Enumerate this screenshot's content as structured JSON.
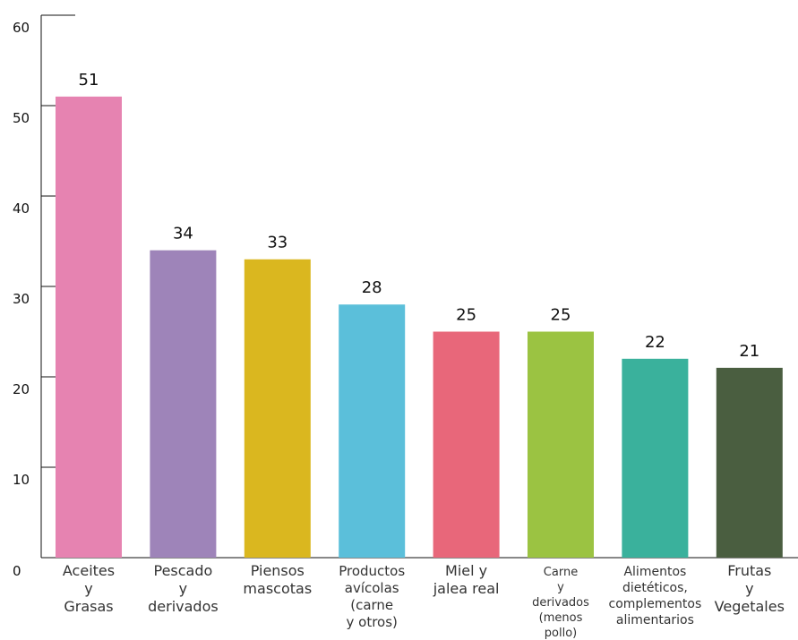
{
  "chart_data": {
    "type": "bar",
    "categories": [
      [
        "Aceites",
        "y",
        "Grasas"
      ],
      [
        "Pescado",
        "y",
        "derivados"
      ],
      [
        "Piensos",
        "mascotas"
      ],
      [
        "Productos",
        "avícolas",
        "(carne",
        "y  otros)"
      ],
      [
        "Miel y",
        "jalea real"
      ],
      [
        "Carne",
        "y",
        "derivados",
        "(menos",
        "pollo)"
      ],
      [
        "Alimentos",
        "dietéticos,",
        "complementos",
        "alimentarios"
      ],
      [
        "Frutas",
        "y",
        "Vegetales"
      ]
    ],
    "values": [
      51,
      34,
      33,
      28,
      25,
      25,
      22,
      21
    ],
    "colors": [
      "#e683b1",
      "#9e84b9",
      "#dab71f",
      "#5bbfda",
      "#e8677a",
      "#9bc342",
      "#3ab19c",
      "#4a5e40"
    ],
    "ylim": [
      0,
      60
    ],
    "yticks": [
      0,
      10,
      20,
      30,
      40,
      50,
      60
    ],
    "title": "",
    "xlabel": "",
    "ylabel": "",
    "grid": false
  }
}
